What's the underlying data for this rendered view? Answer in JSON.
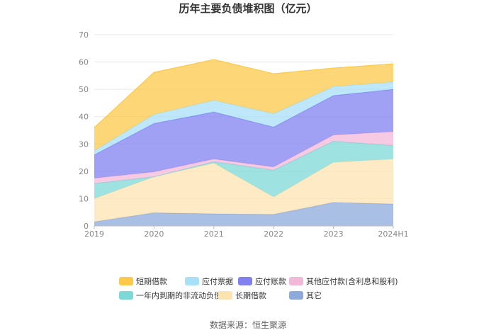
{
  "chart_data": {
    "type": "area",
    "stacked": true,
    "title": "历年主要负债堆积图（亿元）",
    "x": [
      "2019",
      "2020",
      "2021",
      "2022",
      "2023",
      "2024H1"
    ],
    "ylim": [
      0,
      70
    ],
    "yticks": [
      0,
      10,
      20,
      30,
      40,
      50,
      60,
      70
    ],
    "grid": true,
    "legend_position": "bottom",
    "series": [
      {
        "name": "其它",
        "color": "#8eaadb",
        "values": [
          1.5,
          4.8,
          4.4,
          4.2,
          8.6,
          8.0
        ]
      },
      {
        "name": "长期借款",
        "color": "#fde3b0",
        "values": [
          8.5,
          13.2,
          18.6,
          6.4,
          14.7,
          16.5
        ]
      },
      {
        "name": "一年内到期的非流动负债",
        "color": "#7dd8d8",
        "values": [
          5.5,
          0.0,
          0.5,
          9.8,
          7.7,
          4.9
        ]
      },
      {
        "name": "其他应付款(含利息和股利)",
        "color": "#f2b8d8",
        "values": [
          2.0,
          1.8,
          1.0,
          1.2,
          2.3,
          5.1
        ]
      },
      {
        "name": "应付账款",
        "color": "#8080f0",
        "values": [
          8.5,
          17.7,
          17.2,
          14.6,
          14.4,
          15.5
        ]
      },
      {
        "name": "应付票据",
        "color": "#a8e0f8",
        "values": [
          1.5,
          3.3,
          4.3,
          4.9,
          3.3,
          2.7
        ]
      },
      {
        "name": "短期借款",
        "color": "#fcc94a",
        "values": [
          8.5,
          15.4,
          14.9,
          14.6,
          6.8,
          6.6
        ]
      }
    ],
    "legend_order": [
      "短期借款",
      "应付票据",
      "应付账款",
      "其他应付款(含利息和股利)",
      "一年内到期的非流动负债",
      "长期借款",
      "其它"
    ]
  },
  "source": "数据来源：恒生聚源"
}
